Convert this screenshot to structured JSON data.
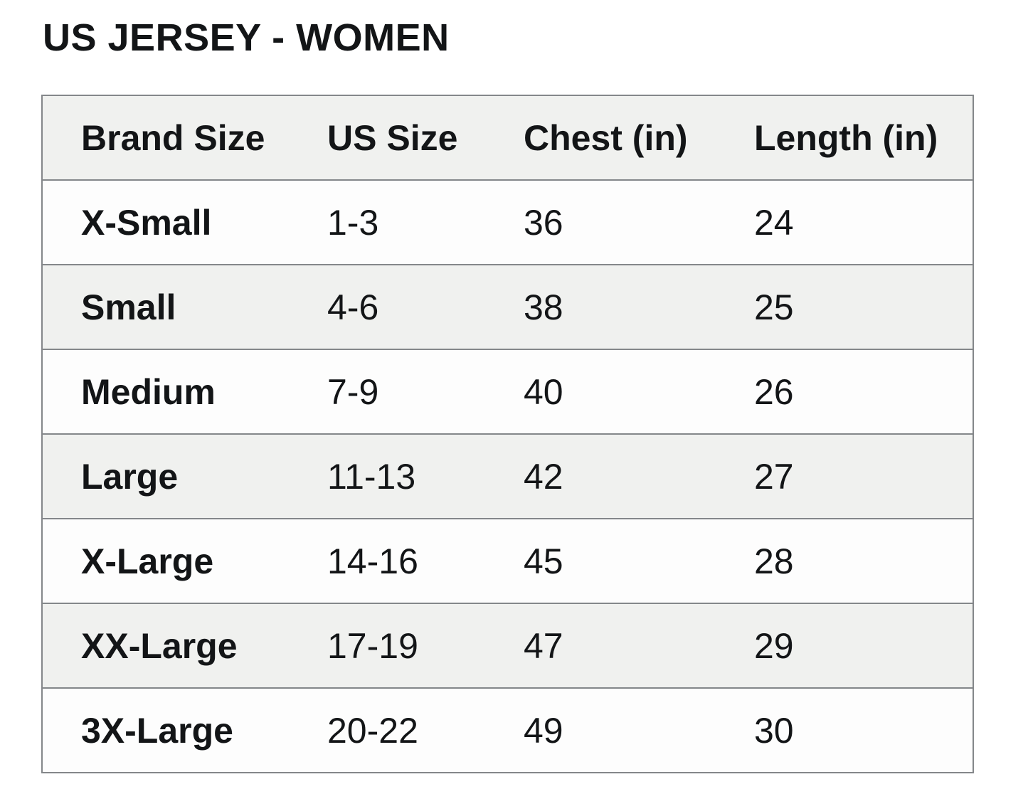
{
  "page": {
    "title": "US JERSEY - WOMEN"
  },
  "size_chart": {
    "columns": [
      {
        "label": "Brand Size"
      },
      {
        "label": "US Size"
      },
      {
        "label": "Chest (in)"
      },
      {
        "label": "Length (in)"
      }
    ],
    "rows": [
      {
        "brand_size": "X-Small",
        "us_size": "1-3",
        "chest": "36",
        "length": "24"
      },
      {
        "brand_size": "Small",
        "us_size": "4-6",
        "chest": "38",
        "length": "25"
      },
      {
        "brand_size": "Medium",
        "us_size": "7-9",
        "chest": "40",
        "length": "26"
      },
      {
        "brand_size": "Large",
        "us_size": "11-13",
        "chest": "42",
        "length": "27"
      },
      {
        "brand_size": "X-Large",
        "us_size": "14-16",
        "chest": "45",
        "length": "28"
      },
      {
        "brand_size": "XX-Large",
        "us_size": "17-19",
        "chest": "47",
        "length": "29"
      },
      {
        "brand_size": "3X-Large",
        "us_size": "20-22",
        "chest": "49",
        "length": "30"
      }
    ]
  },
  "colors": {
    "page_bg": "#ffffff",
    "row_bg": "#fdfdfd",
    "header_bg": "#f0f1ef",
    "border": "#84878a",
    "text": "#131517"
  }
}
